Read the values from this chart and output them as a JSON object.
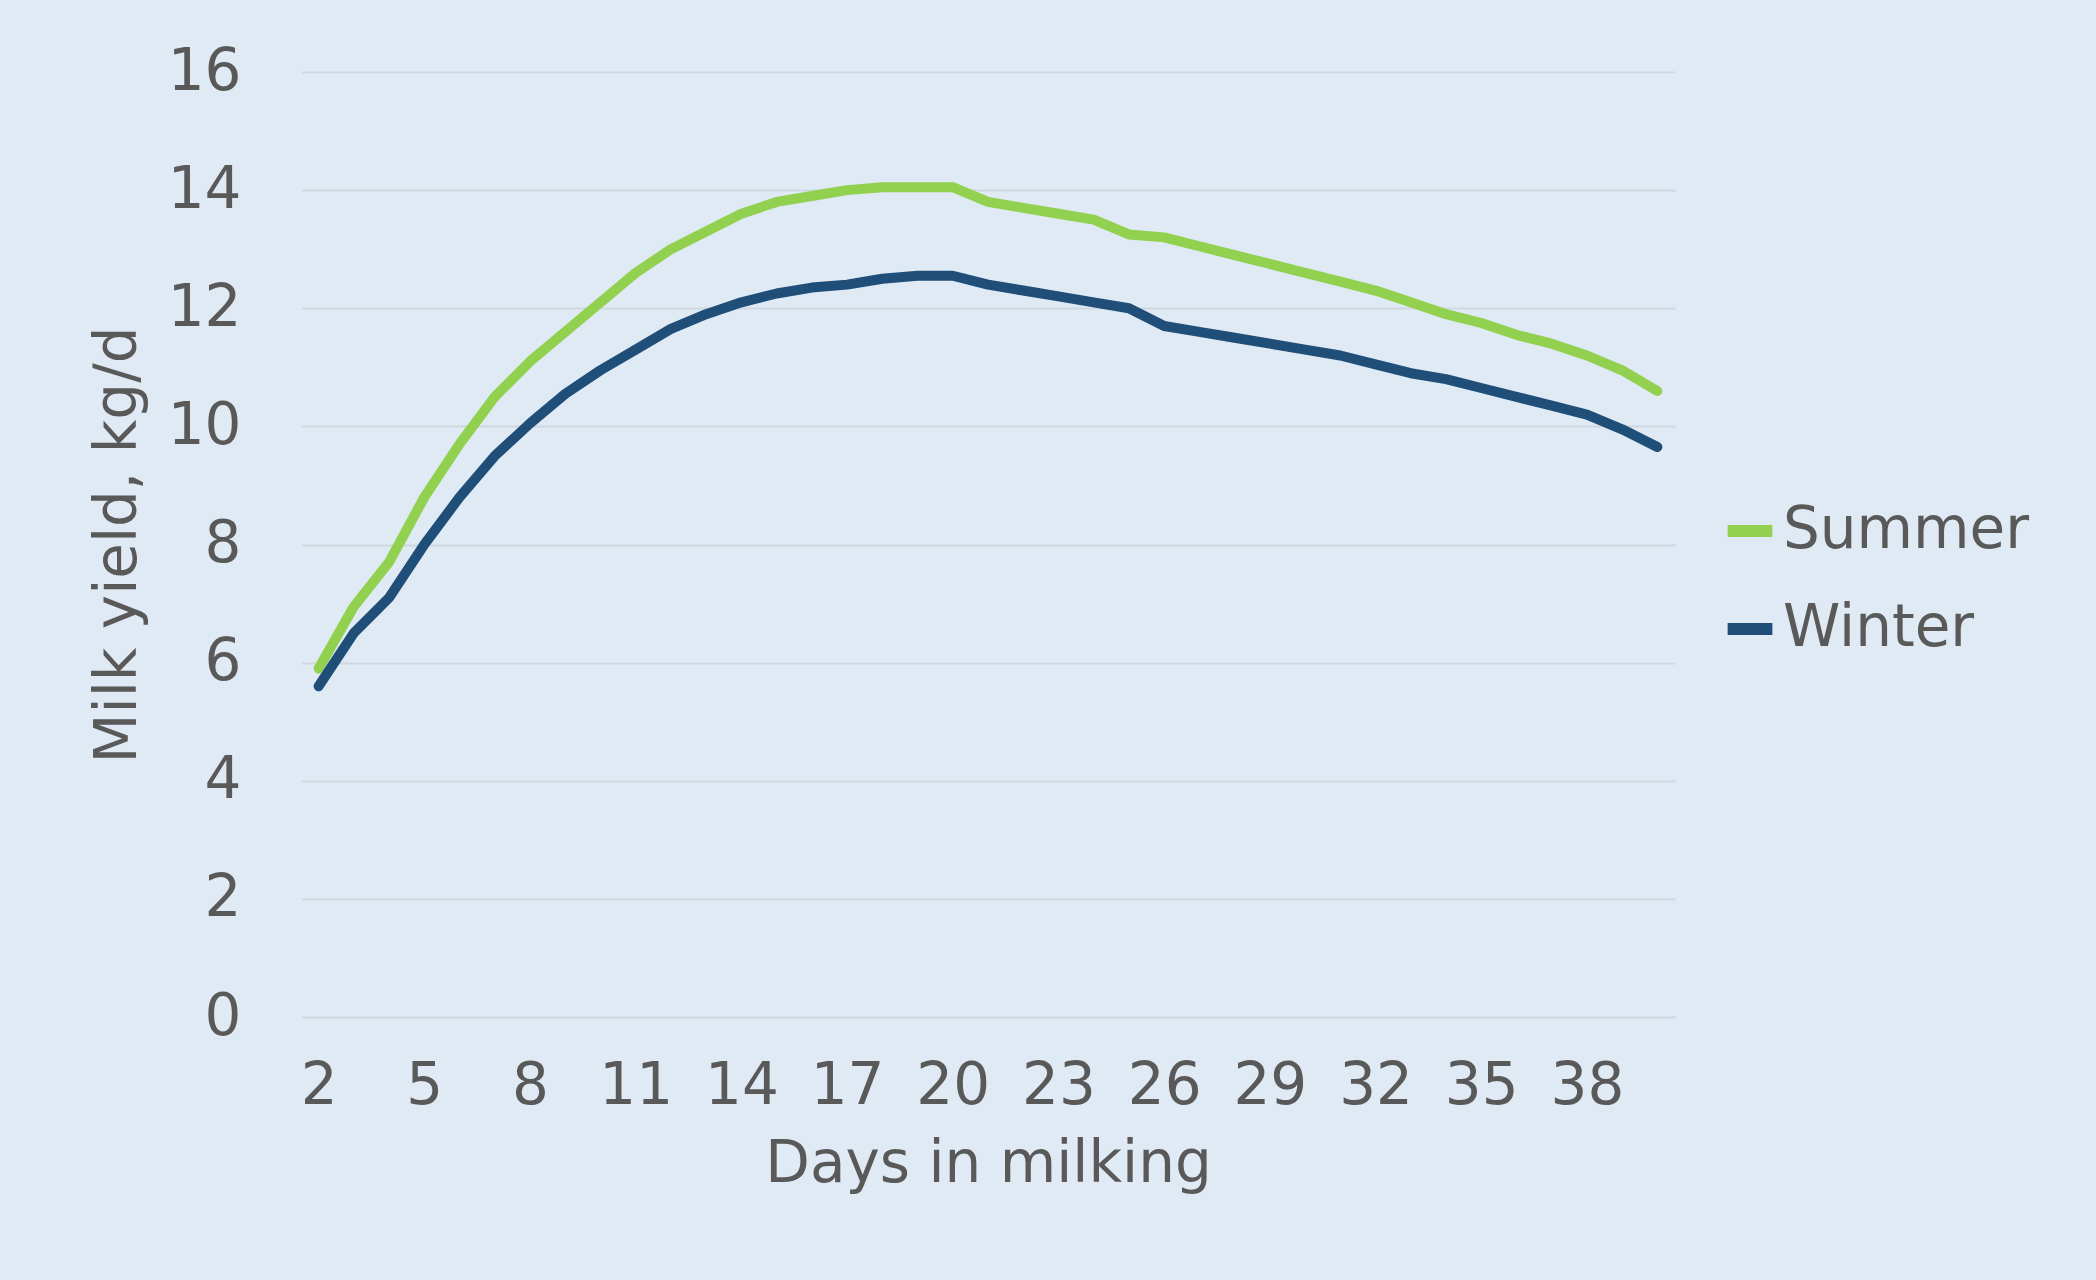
{
  "chart_data": {
    "type": "line",
    "xlabel": "Days in milking",
    "ylabel": "Milk yield, kg/d",
    "x": [
      2,
      3,
      4,
      5,
      6,
      7,
      8,
      9,
      10,
      11,
      12,
      13,
      14,
      15,
      16,
      17,
      18,
      19,
      20,
      21,
      22,
      23,
      24,
      25,
      26,
      27,
      28,
      29,
      30,
      31,
      32,
      33,
      34,
      35,
      36,
      37,
      38,
      39,
      40
    ],
    "xlim": [
      1.5,
      40.5
    ],
    "xticks": [
      2,
      5,
      8,
      11,
      14,
      17,
      20,
      23,
      26,
      29,
      32,
      35,
      38
    ],
    "ylim": [
      0,
      16
    ],
    "yticks": [
      0,
      2,
      4,
      6,
      8,
      10,
      12,
      14,
      16
    ],
    "grid": "y",
    "legend": "right",
    "line_style": "solid",
    "series": [
      {
        "name": "Summer",
        "color": "#92d050",
        "values": [
          5.9,
          6.95,
          7.7,
          8.8,
          9.7,
          10.5,
          11.1,
          11.6,
          12.1,
          12.6,
          13.0,
          13.3,
          13.6,
          13.8,
          13.9,
          14.0,
          14.05,
          14.05,
          14.05,
          13.8,
          13.7,
          13.6,
          13.5,
          13.25,
          13.2,
          13.05,
          12.9,
          12.75,
          12.6,
          12.45,
          12.3,
          12.1,
          11.9,
          11.75,
          11.55,
          11.4,
          11.2,
          10.95,
          10.6
        ]
      },
      {
        "name": "Winter",
        "color": "#1f4e79",
        "values": [
          5.6,
          6.5,
          7.1,
          8.0,
          8.8,
          9.5,
          10.05,
          10.55,
          10.95,
          11.3,
          11.65,
          11.9,
          12.1,
          12.25,
          12.35,
          12.4,
          12.5,
          12.55,
          12.55,
          12.4,
          12.3,
          12.2,
          12.1,
          12.0,
          11.7,
          11.6,
          11.5,
          11.4,
          11.3,
          11.2,
          11.05,
          10.9,
          10.8,
          10.65,
          10.5,
          10.35,
          10.2,
          9.95,
          9.65
        ]
      }
    ]
  }
}
